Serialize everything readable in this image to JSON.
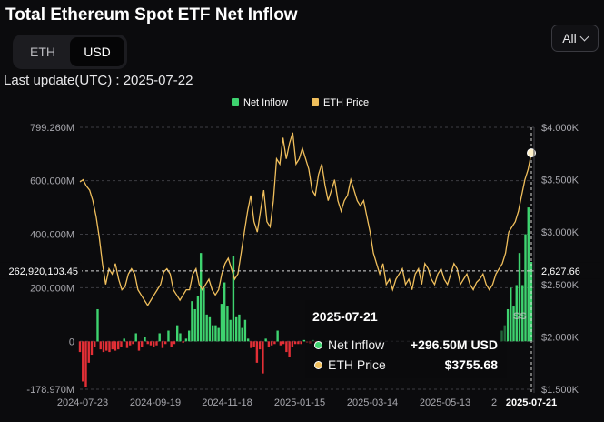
{
  "page": {
    "title": "Total Ethereum Spot ETF Net Inflow",
    "last_update": "Last update(UTC) : 2025-07-22",
    "unit_toggle": {
      "options": [
        "ETH",
        "USD"
      ],
      "selected": "USD"
    },
    "range_select": {
      "value": "All"
    }
  },
  "tooltip": {
    "date": "2025-07-21",
    "rows": [
      {
        "name": "Net Inflow",
        "value": "+296.50M USD"
      },
      {
        "name": "ETH Price",
        "value": "$3755.68"
      }
    ]
  },
  "chart_data": {
    "type": "bar",
    "legend": [
      "Net Inflow",
      "ETH Price"
    ],
    "legend_position": "top",
    "y_left": {
      "ticks": [
        "799.260M",
        "600.000M",
        "400.000M",
        "200.000M",
        "0",
        "-178.970M"
      ],
      "min": -178970000,
      "max": 799260000
    },
    "y_right": {
      "ticks": [
        "$4.000K",
        "$3.500K",
        "$3.000K",
        "$2.500K",
        "$2.000K",
        "$1.500K"
      ],
      "min": 1500,
      "max": 4000
    },
    "x_ticks": [
      "2024-07-23",
      "2024-09-19",
      "2024-11-18",
      "2025-01-15",
      "2025-03-14",
      "2025-05-13",
      "2",
      "2025-07-21"
    ],
    "crosshair": {
      "left_label": "262,920,103.45",
      "right_label": "2,627.66"
    },
    "watermark": "SS",
    "colors": {
      "inflow": "#3ed36f",
      "outflow": "#e32f36",
      "price": "#f0bf5c",
      "grid": "#3c3c42",
      "axis_text": "#a8a8ae"
    },
    "series": [
      {
        "name": "Net Inflow",
        "unit": "USD",
        "values": [
          -40000000,
          -150000000,
          -170000000,
          -80000000,
          -50000000,
          -20000000,
          120000000,
          -30000000,
          -40000000,
          -35000000,
          -40000000,
          -30000000,
          -35000000,
          -30000000,
          -20000000,
          10000000,
          -25000000,
          -15000000,
          -10000000,
          30000000,
          -35000000,
          -20000000,
          15000000,
          -10000000,
          -15000000,
          -20000000,
          -15000000,
          30000000,
          -25000000,
          -10000000,
          40000000,
          -20000000,
          -10000000,
          60000000,
          30000000,
          -5000000,
          10000000,
          40000000,
          150000000,
          120000000,
          170000000,
          330000000,
          200000000,
          100000000,
          90000000,
          60000000,
          60000000,
          50000000,
          140000000,
          220000000,
          130000000,
          80000000,
          320000000,
          90000000,
          100000000,
          50000000,
          80000000,
          10000000,
          -25000000,
          -20000000,
          -80000000,
          -30000000,
          -120000000,
          10000000,
          -20000000,
          -15000000,
          -10000000,
          40000000,
          -15000000,
          -10000000,
          -40000000,
          -60000000,
          -20000000,
          -10000000,
          -10000000,
          -10000000,
          5000000,
          -5000000,
          -8000000,
          5000000,
          -5000000,
          0,
          0,
          0,
          0,
          0,
          0,
          0,
          0,
          0,
          0,
          0,
          0,
          0,
          0,
          0,
          0,
          0,
          0,
          0,
          0,
          0,
          0,
          0,
          0,
          0,
          0,
          0,
          0,
          0,
          0,
          0,
          0,
          0,
          0,
          0,
          0,
          0,
          0,
          0,
          0,
          0,
          0,
          0,
          0,
          0,
          0,
          0,
          0,
          0,
          0,
          0,
          0,
          0,
          0,
          0,
          0,
          0,
          0,
          0,
          0,
          0,
          0,
          40000000,
          60000000,
          120000000,
          200000000,
          130000000,
          210000000,
          330000000,
          210000000,
          400000000,
          500000000,
          296500000
        ]
      },
      {
        "name": "ETH Price",
        "unit": "USD",
        "values": [
          3480,
          3500,
          3440,
          3400,
          3300,
          3150,
          2950,
          2700,
          2500,
          2650,
          2600,
          2700,
          2550,
          2450,
          2480,
          2600,
          2650,
          2600,
          2450,
          2400,
          2350,
          2300,
          2350,
          2400,
          2450,
          2500,
          2620,
          2650,
          2600,
          2450,
          2400,
          2350,
          2400,
          2450,
          2450,
          2600,
          2650,
          2500,
          2450,
          2500,
          2550,
          2450,
          2400,
          2450,
          2600,
          2700,
          2750,
          2650,
          2550,
          2600,
          2800,
          3000,
          3200,
          3350,
          3100,
          3000,
          3200,
          3400,
          3100,
          3050,
          3300,
          3700,
          3650,
          3900,
          3700,
          3850,
          3950,
          3650,
          3700,
          3800,
          3700,
          3600,
          3400,
          3350,
          3550,
          3650,
          3450,
          3300,
          3400,
          3500,
          3300,
          3200,
          3300,
          3350,
          3500,
          3400,
          3300,
          3250,
          3300,
          3150,
          3000,
          2800,
          2700,
          2600,
          2700,
          2500,
          2550,
          2450,
          2550,
          2600,
          2650,
          2500,
          2550,
          2450,
          2600,
          2650,
          2500,
          2700,
          2650,
          2550,
          2500,
          2600,
          2650,
          2550,
          2500,
          2600,
          2700,
          2650,
          2500,
          2550,
          2600,
          2500,
          2450,
          2520,
          2550,
          2600,
          2500,
          2450,
          2500,
          2600,
          2650,
          2700,
          2800,
          3000,
          3050,
          3100,
          3200,
          3350,
          3500,
          3600,
          3755.68
        ]
      }
    ]
  }
}
